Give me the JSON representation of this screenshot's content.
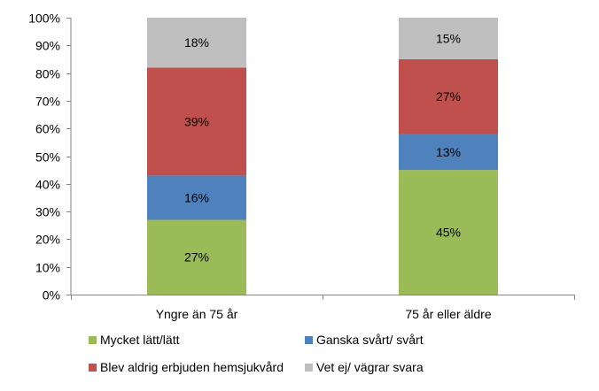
{
  "chart_data": {
    "type": "bar",
    "stacked": true,
    "percent_stacked": true,
    "categories": [
      "Yngre än 75 år",
      "75 år eller äldre"
    ],
    "series": [
      {
        "name": "Mycket lätt/lätt",
        "color": "#9BBB59",
        "values": [
          27,
          45
        ]
      },
      {
        "name": "Ganska svårt/ svårt",
        "color": "#4F81BD",
        "values": [
          16,
          13
        ]
      },
      {
        "name": "Blev aldrig erbjuden hemsjukvård",
        "color": "#C0504D",
        "values": [
          39,
          27
        ]
      },
      {
        "name": "Vet ej/ vägrar svara",
        "color": "#BFBFBF",
        "values": [
          18,
          15
        ]
      }
    ],
    "data_labels": [
      [
        "27%",
        "45%"
      ],
      [
        "16%",
        "13%"
      ],
      [
        "39%",
        "27%"
      ],
      [
        "18%",
        "15%"
      ]
    ],
    "y_ticks": [
      "0%",
      "10%",
      "20%",
      "30%",
      "40%",
      "50%",
      "60%",
      "70%",
      "80%",
      "90%",
      "100%"
    ],
    "ylim": [
      0,
      100
    ],
    "grid": false,
    "legend_position": "bottom",
    "title": "",
    "xlabel": "",
    "ylabel": ""
  }
}
